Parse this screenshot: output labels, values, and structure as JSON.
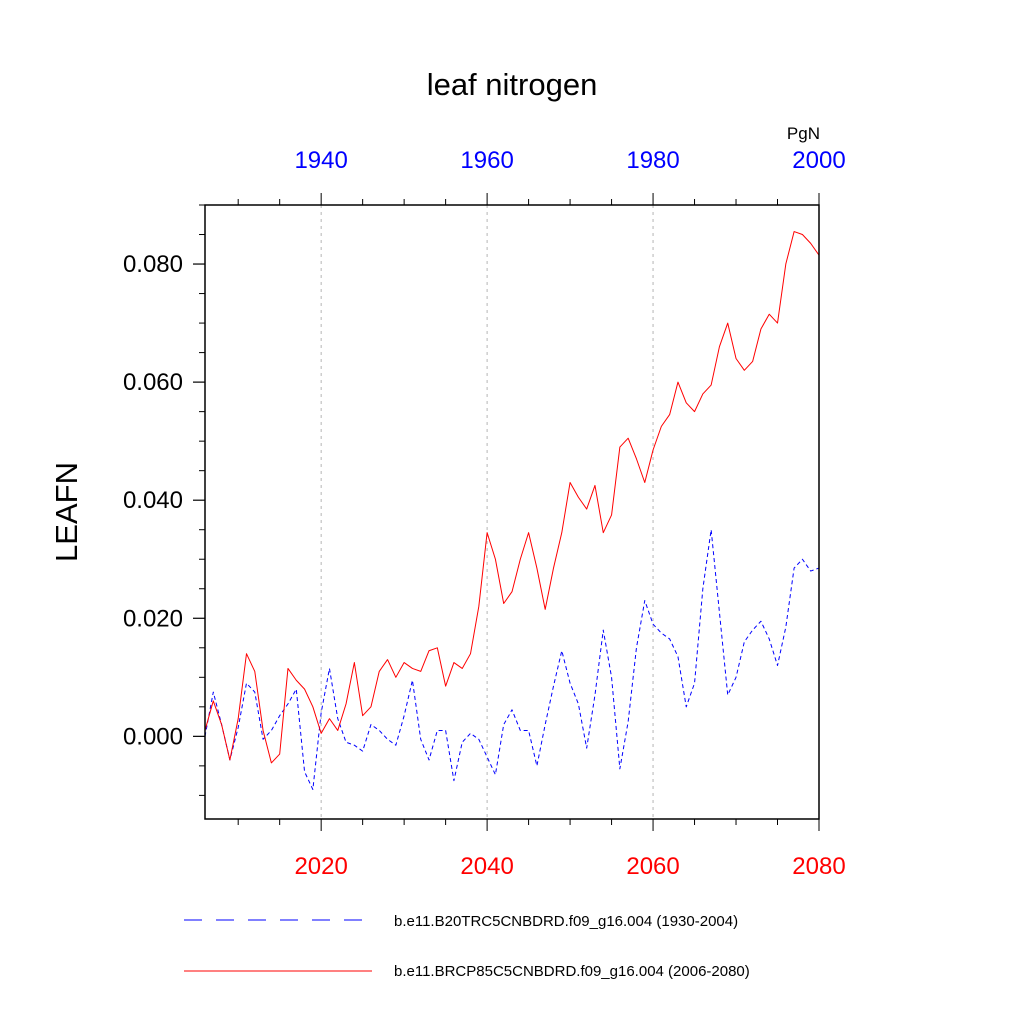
{
  "chart_data": {
    "type": "line",
    "title": "leaf nitrogen",
    "ylabel": "LEAFN",
    "units": "PgN",
    "ylim": [
      -0.014,
      0.09
    ],
    "y_ticks": [
      {
        "value": 0.0,
        "label": "0.000"
      },
      {
        "value": 0.02,
        "label": "0.020"
      },
      {
        "value": 0.04,
        "label": "0.040"
      },
      {
        "value": 0.06,
        "label": "0.060"
      },
      {
        "value": 0.08,
        "label": "0.080"
      }
    ],
    "gridlines_x": [
      2020,
      2040,
      2060
    ],
    "bottom_axis": {
      "range": [
        2006,
        2080
      ],
      "color": "#ff0000",
      "ticks": [
        {
          "value": 2020,
          "label": "2020"
        },
        {
          "value": 2040,
          "label": "2040"
        },
        {
          "value": 2060,
          "label": "2060"
        },
        {
          "value": 2080,
          "label": "2080"
        }
      ]
    },
    "top_axis": {
      "range": [
        1926,
        2000
      ],
      "color": "#0000ff",
      "ticks": [
        {
          "value": 1940,
          "label": "1940"
        },
        {
          "value": 1960,
          "label": "1960"
        },
        {
          "value": 1980,
          "label": "1980"
        },
        {
          "value": 2000,
          "label": "2000"
        }
      ]
    },
    "series": [
      {
        "name": "b.e11.B20TRC5CNBDRD.f09_g16.004 (1930-2004)",
        "color": "#0000ff",
        "style": "dashed",
        "axis": "top",
        "x_start": 1926,
        "values": [
          0.0,
          0.0075,
          0.002,
          -0.004,
          0.0015,
          0.009,
          0.0075,
          -0.0005,
          0.001,
          0.0035,
          0.0055,
          0.008,
          -0.006,
          -0.009,
          0.004,
          0.0115,
          0.003,
          -0.001,
          -0.0015,
          -0.0025,
          0.002,
          0.001,
          -0.0005,
          -0.0015,
          0.0035,
          0.0095,
          -0.0005,
          -0.004,
          0.001,
          0.001,
          -0.0075,
          -0.001,
          0.0005,
          -0.0005,
          -0.0035,
          -0.0065,
          0.002,
          0.0045,
          0.001,
          0.001,
          -0.005,
          0.002,
          0.0085,
          0.0145,
          0.009,
          0.0055,
          -0.002,
          0.007,
          0.018,
          0.01,
          -0.0055,
          0.0025,
          0.015,
          0.023,
          0.019,
          0.0175,
          0.0165,
          0.0135,
          0.005,
          0.009,
          0.025,
          0.035,
          0.021,
          0.007,
          0.01,
          0.016,
          0.018,
          0.0195,
          0.0165,
          0.012,
          0.0185,
          0.0285,
          0.03,
          0.028,
          0.0285
        ]
      },
      {
        "name": "b.e11.BRCP85C5CNBDRD.f09_g16.004 (2006-2080)",
        "color": "#ff0000",
        "style": "solid",
        "axis": "bottom",
        "x_start": 2006,
        "values": [
          0.001,
          0.006,
          0.002,
          -0.004,
          0.003,
          0.014,
          0.011,
          0.001,
          -0.0045,
          -0.003,
          0.0115,
          0.0095,
          0.008,
          0.005,
          0.0005,
          0.003,
          0.001,
          0.0055,
          0.0125,
          0.0035,
          0.005,
          0.011,
          0.013,
          0.01,
          0.0125,
          0.0115,
          0.011,
          0.0145,
          0.015,
          0.0085,
          0.0125,
          0.0115,
          0.014,
          0.022,
          0.0345,
          0.03,
          0.0225,
          0.0245,
          0.03,
          0.0345,
          0.0285,
          0.0215,
          0.0285,
          0.0345,
          0.043,
          0.0405,
          0.0385,
          0.0425,
          0.0345,
          0.0375,
          0.049,
          0.0505,
          0.047,
          0.043,
          0.0485,
          0.0525,
          0.0545,
          0.06,
          0.0565,
          0.055,
          0.058,
          0.0595,
          0.066,
          0.07,
          0.064,
          0.062,
          0.0635,
          0.069,
          0.0715,
          0.07,
          0.08,
          0.0855,
          0.085,
          0.0835,
          0.0815
        ]
      }
    ]
  }
}
